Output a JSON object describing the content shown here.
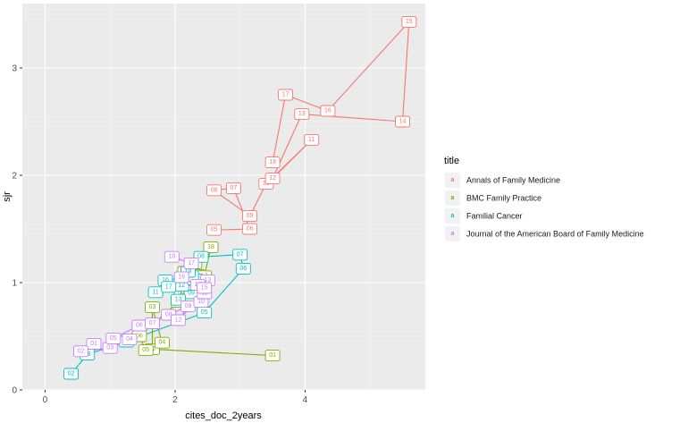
{
  "chart_data": {
    "type": "line",
    "title": "",
    "xlabel": "cites_doc_2years",
    "ylabel": "sjr",
    "xlim": [
      -0.35,
      5.85
    ],
    "ylim": [
      0,
      3.6
    ],
    "x_ticks": [
      0,
      2,
      4
    ],
    "y_ticks": [
      0,
      1,
      2,
      3
    ],
    "x_tick_labels": [
      "0",
      "2",
      "4"
    ],
    "y_tick_labels": [
      "0",
      "1",
      "2",
      "3"
    ],
    "grid": true,
    "legend_title": "title",
    "legend_position": "right",
    "series": [
      {
        "name": "Annals of Family Medicine",
        "color": "#F8766D",
        "points": [
          {
            "label": "05",
            "x": 2.6,
            "y": 1.49
          },
          {
            "label": "06",
            "x": 3.15,
            "y": 1.5
          },
          {
            "label": "07",
            "x": 2.9,
            "y": 1.88
          },
          {
            "label": "08",
            "x": 2.6,
            "y": 1.86
          },
          {
            "label": "09",
            "x": 3.15,
            "y": 1.62
          },
          {
            "label": "10",
            "x": 3.4,
            "y": 1.92
          },
          {
            "label": "11",
            "x": 4.1,
            "y": 2.33
          },
          {
            "label": "12",
            "x": 3.5,
            "y": 1.97
          },
          {
            "label": "13",
            "x": 3.95,
            "y": 2.57
          },
          {
            "label": "14",
            "x": 5.5,
            "y": 2.5
          },
          {
            "label": "15",
            "x": 5.6,
            "y": 3.43
          },
          {
            "label": "16",
            "x": 4.35,
            "y": 2.6
          },
          {
            "label": "17",
            "x": 3.7,
            "y": 2.75
          },
          {
            "label": "18",
            "x": 3.5,
            "y": 2.12
          }
        ]
      },
      {
        "name": "BMC Family Practice",
        "color": "#7CAE00",
        "points": [
          {
            "label": "01",
            "x": 3.5,
            "y": 0.32
          },
          {
            "label": "02",
            "x": 1.65,
            "y": 0.38
          },
          {
            "label": "03",
            "x": 1.65,
            "y": 0.77
          },
          {
            "label": "04",
            "x": 1.8,
            "y": 0.44
          },
          {
            "label": "05",
            "x": 1.55,
            "y": 0.37
          },
          {
            "label": "06",
            "x": 1.45,
            "y": 0.5
          },
          {
            "label": "07",
            "x": 2.05,
            "y": 0.82
          },
          {
            "label": "08",
            "x": 2.1,
            "y": 0.9
          },
          {
            "label": "09",
            "x": 2.2,
            "y": 0.88
          },
          {
            "label": "10",
            "x": 2.15,
            "y": 1.1
          },
          {
            "label": "11",
            "x": 2.2,
            "y": 0.95
          },
          {
            "label": "12",
            "x": 2.3,
            "y": 1.05
          },
          {
            "label": "13",
            "x": 2.35,
            "y": 1.07
          },
          {
            "label": "14",
            "x": 2.25,
            "y": 0.93
          },
          {
            "label": "15",
            "x": 2.3,
            "y": 1.18
          },
          {
            "label": "16",
            "x": 2.3,
            "y": 1.07
          },
          {
            "label": "17",
            "x": 2.45,
            "y": 1.06
          },
          {
            "label": "18",
            "x": 2.55,
            "y": 1.33
          }
        ]
      },
      {
        "name": "Familial Cancer",
        "color": "#00BFC4",
        "points": [
          {
            "label": "02",
            "x": 0.4,
            "y": 0.15
          },
          {
            "label": "03",
            "x": 0.65,
            "y": 0.33
          },
          {
            "label": "04",
            "x": 1.25,
            "y": 0.45
          },
          {
            "label": "05",
            "x": 2.45,
            "y": 0.72
          },
          {
            "label": "06",
            "x": 3.05,
            "y": 1.13
          },
          {
            "label": "07",
            "x": 3.0,
            "y": 1.26
          },
          {
            "label": "08",
            "x": 2.4,
            "y": 1.24
          },
          {
            "label": "09",
            "x": 2.25,
            "y": 0.9
          },
          {
            "label": "10",
            "x": 2.2,
            "y": 0.98
          },
          {
            "label": "11",
            "x": 1.7,
            "y": 0.91
          },
          {
            "label": "12",
            "x": 2.1,
            "y": 0.97
          },
          {
            "label": "13",
            "x": 2.05,
            "y": 0.84
          },
          {
            "label": "14",
            "x": 2.3,
            "y": 1.03
          },
          {
            "label": "15",
            "x": 2.25,
            "y": 1.06
          },
          {
            "label": "16",
            "x": 1.85,
            "y": 1.02
          },
          {
            "label": "17",
            "x": 1.9,
            "y": 0.96
          },
          {
            "label": "18",
            "x": 2.2,
            "y": 1.1
          }
        ]
      },
      {
        "name": "Journal of the American Board of Family Medicine",
        "color": "#C77CFF",
        "points": [
          {
            "label": "01",
            "x": 0.75,
            "y": 0.43
          },
          {
            "label": "02",
            "x": 0.55,
            "y": 0.36
          },
          {
            "label": "03",
            "x": 1.0,
            "y": 0.39
          },
          {
            "label": "04",
            "x": 1.3,
            "y": 0.47
          },
          {
            "label": "05",
            "x": 1.05,
            "y": 0.48
          },
          {
            "label": "06",
            "x": 1.45,
            "y": 0.6
          },
          {
            "label": "07",
            "x": 1.65,
            "y": 0.62
          },
          {
            "label": "08",
            "x": 1.9,
            "y": 0.7
          },
          {
            "label": "09",
            "x": 2.2,
            "y": 0.78
          },
          {
            "label": "10",
            "x": 2.4,
            "y": 0.82
          },
          {
            "label": "11",
            "x": 2.45,
            "y": 0.9
          },
          {
            "label": "12",
            "x": 2.05,
            "y": 0.65
          },
          {
            "label": "13",
            "x": 2.5,
            "y": 1.02
          },
          {
            "label": "14",
            "x": 2.35,
            "y": 0.98
          },
          {
            "label": "15",
            "x": 2.45,
            "y": 0.95
          },
          {
            "label": "16",
            "x": 2.1,
            "y": 1.05
          },
          {
            "label": "17",
            "x": 2.25,
            "y": 1.18
          },
          {
            "label": "18",
            "x": 1.95,
            "y": 1.24
          }
        ]
      }
    ]
  }
}
